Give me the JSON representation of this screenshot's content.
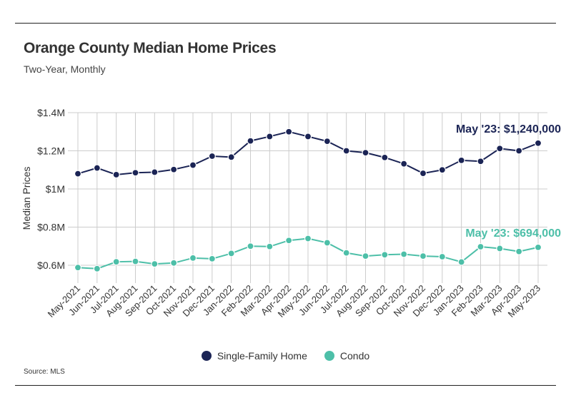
{
  "title": "Orange County Median Home Prices",
  "subtitle": "Two-Year, Monthly",
  "source": "Source:  MLS",
  "colors": {
    "single_family": "#1b2455",
    "condo": "#4dbfa8",
    "grid": "#cccccc",
    "axis": "#333333"
  },
  "chart_data": {
    "type": "line",
    "title": "Orange County Median Home Prices",
    "subtitle": "Two-Year, Monthly",
    "xlabel": "",
    "ylabel": "Median Prices",
    "ylim": [
      500000,
      1400000
    ],
    "y_ticks": [
      {
        "value": 600000,
        "label": "$0.6M"
      },
      {
        "value": 800000,
        "label": "$0.8M"
      },
      {
        "value": 1000000,
        "label": "$1M"
      },
      {
        "value": 1200000,
        "label": "$1.2M"
      },
      {
        "value": 1400000,
        "label": "$1.4M"
      }
    ],
    "categories": [
      "May-2021",
      "Jun-2021",
      "Jul-2021",
      "Aug-2021",
      "Sep-2021",
      "Oct-2021",
      "Nov-2021",
      "Dec-2021",
      "Jan-2022",
      "Feb-2022",
      "Mar-2022",
      "Apr-2022",
      "May-2022",
      "Jun-2022",
      "Jul-2022",
      "Aug-2022",
      "Sep-2022",
      "Oct-2022",
      "Nov-2022",
      "Dec-2022",
      "Jan-2023",
      "Feb-2023",
      "Mar-2023",
      "Apr-2023",
      "May-2023"
    ],
    "series": [
      {
        "name": "Single-Family Home",
        "color": "#1b2455",
        "values": [
          1080000,
          1110000,
          1075000,
          1085000,
          1088000,
          1102000,
          1125000,
          1172000,
          1167000,
          1252000,
          1275000,
          1300000,
          1275000,
          1250000,
          1200000,
          1190000,
          1165000,
          1132000,
          1082000,
          1100000,
          1150000,
          1145000,
          1212000,
          1200000,
          1240000
        ],
        "annotation": "May '23: $1,240,000"
      },
      {
        "name": "Condo",
        "color": "#4dbfa8",
        "values": [
          588000,
          582000,
          618000,
          620000,
          607000,
          612000,
          638000,
          634000,
          662000,
          700000,
          698000,
          730000,
          740000,
          718000,
          665000,
          648000,
          655000,
          658000,
          648000,
          645000,
          617000,
          697000,
          688000,
          672000,
          694000
        ],
        "annotation": "May '23: $694,000"
      }
    ],
    "legend": [
      "Single-Family Home",
      "Condo"
    ],
    "legend_position": "bottom-center",
    "grid": true
  }
}
